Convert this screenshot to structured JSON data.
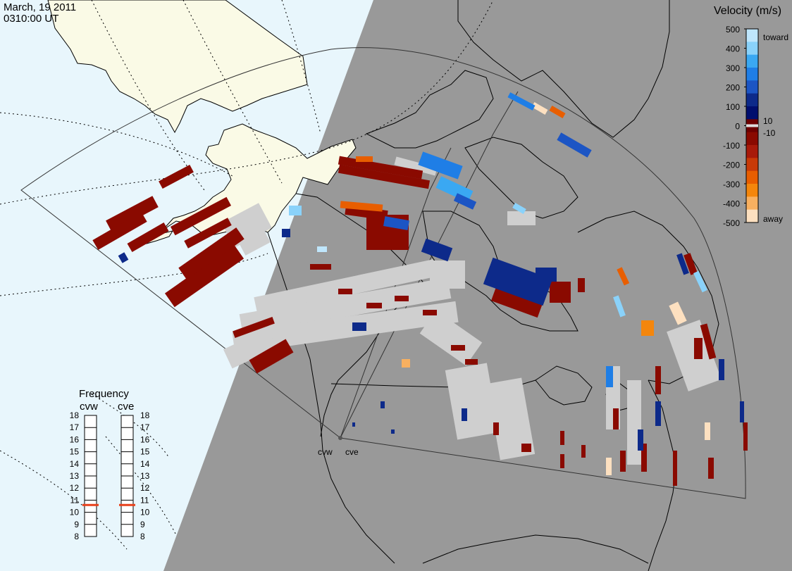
{
  "header": {
    "date": "March, 19 2011",
    "time": "0310:00 UT"
  },
  "colors": {
    "day_side": "#e8f6fc",
    "night_side": "#999999",
    "land_day": "#fafae6",
    "ground_scatter": "#cfcfcf",
    "coast_line": "#000000"
  },
  "velocity_scale": {
    "title": "Velocity (m/s)",
    "toward_label": "toward",
    "away_label": "away",
    "ticks_left": [
      "500",
      "400",
      "300",
      "200",
      "100",
      "0",
      "-100",
      "-200",
      "-300",
      "-400",
      "-500"
    ],
    "ticks_right": [
      "10",
      "-10"
    ],
    "colors": [
      "#bfe6fc",
      "#8ad2fa",
      "#3aa8f2",
      "#1f7ee6",
      "#1c55c4",
      "#0d2a8a",
      "#000e6e",
      "#6e0000",
      "#8a0a00",
      "#a81a0a",
      "#c83a08",
      "#e85e00",
      "#f4860c",
      "#f8b060",
      "#fde0c0"
    ]
  },
  "frequency": {
    "title": "Frequency",
    "radars": [
      {
        "name": "cvw",
        "value_mhz": 10.6
      },
      {
        "name": "cve",
        "value_mhz": 10.6
      }
    ],
    "ticks": [
      "18",
      "17",
      "16",
      "15",
      "14",
      "13",
      "12",
      "11",
      "10",
      "9",
      "8"
    ],
    "range": [
      8,
      18
    ],
    "marker_color": "#e8401a"
  },
  "radars": [
    {
      "code": "cvw"
    },
    {
      "code": "cve"
    }
  ]
}
